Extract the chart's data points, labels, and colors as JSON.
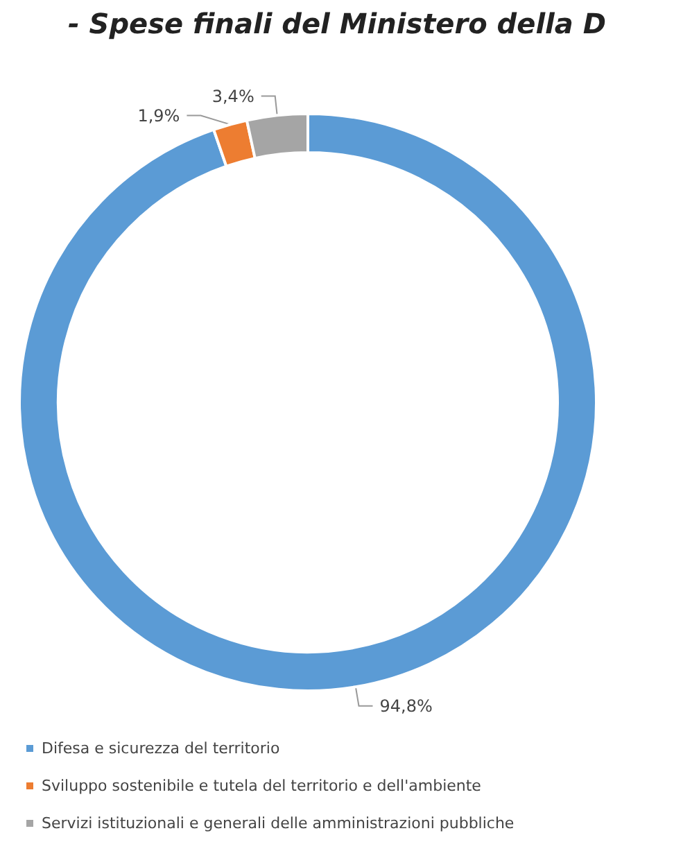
{
  "chart_data": {
    "type": "donut",
    "title": "- Spese finali del Ministero della D",
    "categories": [
      "Difesa e sicurezza del territorio",
      "Sviluppo sostenibile e tutela del territorio e dell'ambiente",
      "Servizi istituzionali e generali delle amministrazioni pubbliche"
    ],
    "values": [
      94.8,
      1.9,
      3.4
    ],
    "value_labels": [
      "94,8%",
      "1,9%",
      "3,4%"
    ],
    "colors": [
      "#5b9bd5",
      "#ed7d31",
      "#a5a5a5"
    ],
    "legend": "bottom"
  }
}
